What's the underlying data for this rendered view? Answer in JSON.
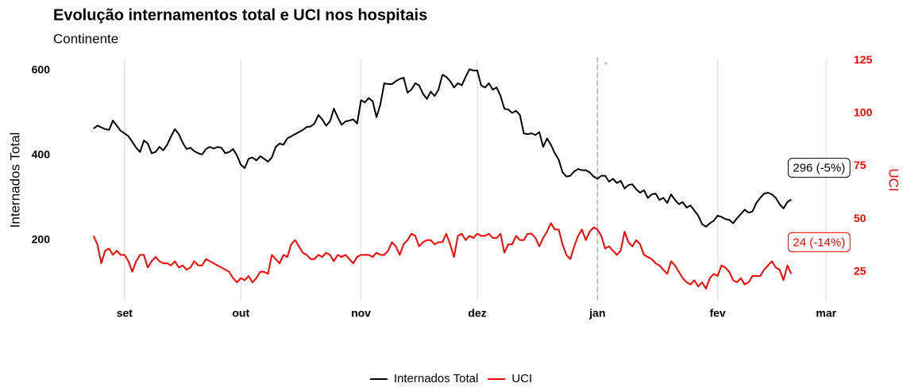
{
  "chart_data": {
    "type": "line",
    "title": "Evolução internamentos total e UCI nos hospitais",
    "subtitle": "Continente",
    "ylabel": "Internados Total",
    "y2label": "UCI",
    "x": [
      -8,
      -7,
      -6,
      -5,
      -4,
      -3,
      -2,
      -1,
      0,
      1,
      2,
      3,
      4,
      5,
      6,
      7,
      8,
      9,
      10,
      11,
      12,
      13,
      14,
      15,
      16,
      17,
      18,
      19,
      20,
      21,
      22,
      23,
      24,
      25,
      26,
      27,
      28,
      29,
      30,
      31,
      32,
      33,
      34,
      35,
      36,
      37,
      38,
      39,
      40,
      41,
      42,
      43,
      44,
      45,
      46,
      47,
      48,
      49,
      50,
      51,
      52,
      53,
      54,
      55,
      56,
      57,
      58,
      59,
      60,
      61,
      62,
      63,
      64,
      65,
      66,
      67,
      68,
      69,
      70,
      71,
      72,
      73,
      74,
      75,
      76,
      77,
      78,
      79,
      80,
      81,
      82,
      83,
      84,
      85,
      86,
      87,
      88,
      89,
      90,
      91,
      92,
      93,
      94,
      95,
      96,
      97,
      98,
      99,
      100,
      101,
      102,
      103,
      104,
      105,
      106,
      107,
      108,
      109,
      110,
      111,
      112,
      113,
      114,
      115,
      116,
      117,
      118,
      119,
      120,
      121,
      122,
      123,
      124,
      125,
      126,
      127,
      128,
      129,
      130,
      131,
      132,
      133,
      134,
      135,
      136,
      137,
      138,
      139,
      140,
      141,
      142,
      143,
      144,
      145,
      146,
      147,
      148,
      149,
      150,
      151,
      152,
      153,
      154,
      155,
      156,
      157,
      158,
      159,
      160,
      161,
      162,
      163,
      164,
      165,
      166,
      167,
      168,
      169,
      170,
      171,
      172
    ],
    "xlim": [
      -10,
      183
    ],
    "xticks": [
      {
        "value": 0,
        "label": "set"
      },
      {
        "value": 30,
        "label": "out"
      },
      {
        "value": 61,
        "label": "nov"
      },
      {
        "value": 91,
        "label": "dez"
      },
      {
        "value": 122,
        "label": "jan"
      },
      {
        "value": 153,
        "label": "fev"
      },
      {
        "value": 181,
        "label": "mar"
      }
    ],
    "ylim": [
      56,
      626
    ],
    "yticks": [
      200,
      400,
      600
    ],
    "y2lim": [
      11,
      125.5
    ],
    "y2ticks": [
      25,
      50,
      75,
      100,
      125
    ],
    "grid": true,
    "legend": "bottom",
    "annotations": [
      {
        "x": 122,
        "label": "*"
      }
    ],
    "series": [
      {
        "name": "Internados Total",
        "color": "#000000",
        "end_label": "296 (-5%)",
        "values": [
          463,
          470,
          466,
          462,
          460,
          482,
          470,
          458,
          452,
          445,
          432,
          418,
          408,
          435,
          428,
          405,
          408,
          420,
          412,
          425,
          445,
          462,
          450,
          430,
          415,
          418,
          410,
          405,
          402,
          415,
          420,
          416,
          420,
          418,
          405,
          408,
          415,
          400,
          378,
          370,
          392,
          395,
          388,
          398,
          392,
          385,
          395,
          420,
          428,
          425,
          440,
          445,
          450,
          455,
          460,
          467,
          468,
          475,
          495,
          485,
          470,
          480,
          510,
          490,
          472,
          480,
          482,
          485,
          475,
          530,
          525,
          535,
          528,
          490,
          520,
          570,
          568,
          568,
          575,
          580,
          583,
          548,
          555,
          570,
          565,
          545,
          533,
          550,
          540,
          555,
          590,
          585,
          575,
          560,
          570,
          565,
          585,
          603,
          600,
          600,
          565,
          560,
          570,
          555,
          560,
          540,
          510,
          508,
          500,
          505,
          495,
          452,
          450,
          452,
          448,
          455,
          420,
          440,
          425,
          405,
          390,
          360,
          350,
          352,
          362,
          368,
          365,
          365,
          360,
          350,
          345,
          352,
          352,
          338,
          345,
          335,
          340,
          322,
          330,
          332,
          320,
          312,
          318,
          300,
          308,
          310,
          295,
          300,
          288,
          308,
          295,
          285,
          290,
          277,
          282,
          270,
          258,
          238,
          232,
          240,
          246,
          258,
          255,
          250,
          248,
          240,
          252,
          262,
          272,
          265,
          268,
          288,
          300,
          310,
          312,
          308,
          300,
          285,
          275,
          290,
          296
        ]
      },
      {
        "name": "UCI",
        "color": "#ff0000",
        "axis": "y2",
        "end_label": "24 (-14%)",
        "values": [
          42,
          38,
          29,
          35,
          36,
          33,
          35,
          33,
          33,
          30,
          25,
          30,
          33,
          33,
          27,
          30,
          32,
          30,
          29,
          29,
          28,
          30,
          27,
          28,
          26,
          27,
          30,
          28,
          28,
          31,
          30,
          29,
          28,
          27,
          26,
          25,
          22,
          20,
          22,
          21,
          23,
          20,
          22,
          25,
          25,
          24,
          33,
          31,
          29,
          33,
          32,
          38,
          40,
          37,
          34,
          33,
          31,
          31,
          33,
          32,
          34,
          33,
          30,
          33,
          32,
          33,
          31,
          29,
          32,
          33,
          33,
          33,
          32,
          34,
          33,
          33,
          35,
          39,
          37,
          33,
          38,
          40,
          43,
          42,
          37,
          39,
          40,
          40,
          38,
          39,
          39,
          43,
          38,
          32,
          42,
          43,
          40,
          42,
          41,
          43,
          42,
          42,
          43,
          41,
          41,
          43,
          34,
          38,
          38,
          42,
          40,
          40,
          43,
          43,
          41,
          37,
          41,
          44,
          48,
          45,
          45,
          38,
          33,
          31,
          37,
          42,
          45,
          40,
          44,
          46,
          45,
          42,
          36,
          37,
          35,
          33,
          35,
          44,
          39,
          37,
          40,
          38,
          33,
          32,
          31,
          29,
          28,
          26,
          24,
          30,
          28,
          25,
          22,
          20,
          19,
          21,
          18,
          20,
          17,
          22,
          24,
          23,
          28,
          27,
          25,
          21,
          20,
          22,
          19,
          20,
          23,
          23,
          23,
          26,
          28,
          30,
          27,
          26,
          21,
          28,
          24
        ]
      }
    ]
  }
}
